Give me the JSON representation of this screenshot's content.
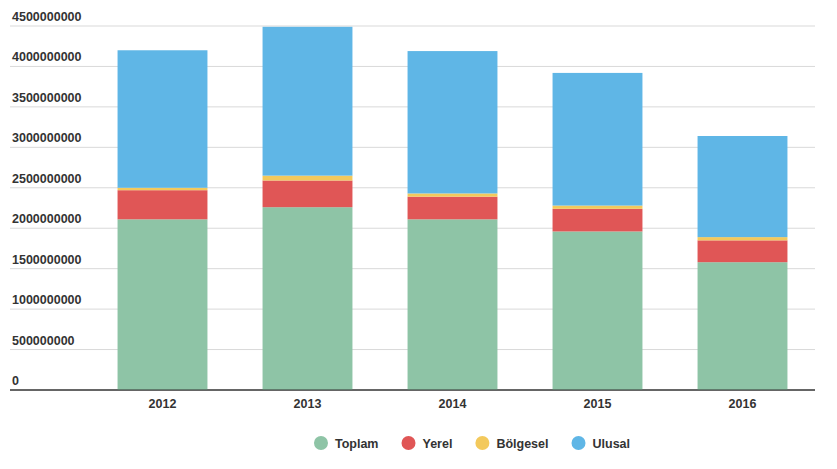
{
  "chart_data": {
    "type": "bar",
    "stacked": true,
    "grid": true,
    "legend": "bottom",
    "categories": [
      "2012",
      "2013",
      "2014",
      "2015",
      "2016"
    ],
    "series": [
      {
        "name": "Toplam",
        "color": "#8ec4a6",
        "values": [
          2110000000,
          2260000000,
          2110000000,
          1960000000,
          1580000000
        ]
      },
      {
        "name": "Yerel",
        "color": "#e05656",
        "values": [
          360000000,
          330000000,
          280000000,
          280000000,
          270000000
        ]
      },
      {
        "name": "Bölgesel",
        "color": "#f3c95c",
        "values": [
          30000000,
          60000000,
          40000000,
          40000000,
          40000000
        ]
      },
      {
        "name": "Ulusal",
        "color": "#5fb6e6",
        "values": [
          1700000000,
          1840000000,
          1760000000,
          1640000000,
          1250000000
        ]
      }
    ],
    "ylim": [
      0,
      4500000000
    ],
    "yticks": [
      0,
      500000000,
      1000000000,
      1500000000,
      2000000000,
      2500000000,
      3000000000,
      3500000000,
      4000000000,
      4500000000
    ]
  }
}
